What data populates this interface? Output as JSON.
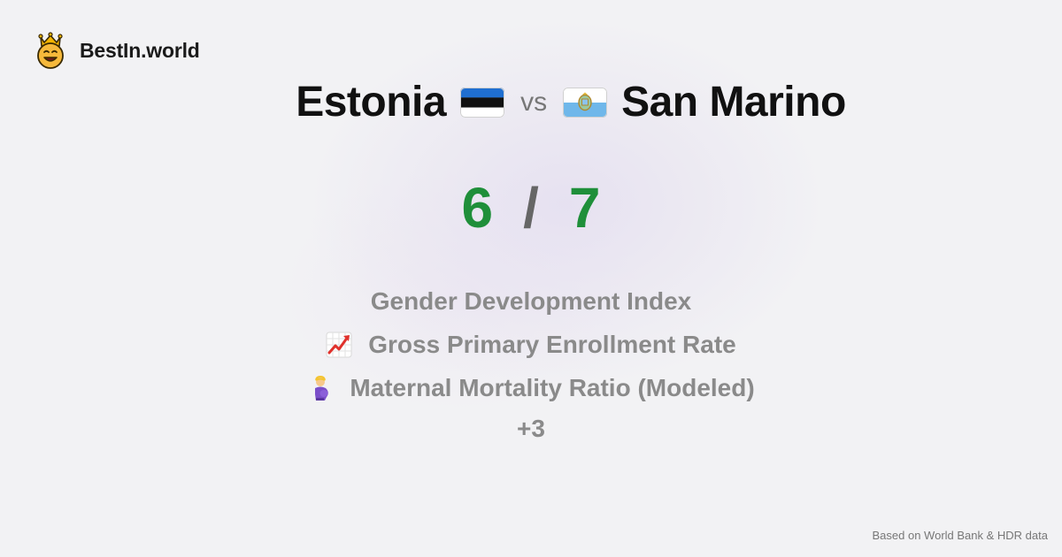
{
  "brand": {
    "name": "BestIn.world",
    "icon": "crown-smiley-icon"
  },
  "comparison": {
    "left_country": "Estonia",
    "left_flag": "estonia-flag-icon",
    "vs_label": "vs",
    "right_country": "San Marino",
    "right_flag": "san-marino-flag-icon"
  },
  "score": {
    "left": "6",
    "separator": "/",
    "right": "7",
    "color": "#1f8f3a"
  },
  "metrics": [
    {
      "label": "Gender Development Index",
      "icon": ""
    },
    {
      "label": "Gross Primary Enrollment Rate",
      "icon": "chart-increasing-icon"
    },
    {
      "label": "Maternal Mortality Ratio (Modeled)",
      "icon": "pregnant-woman-icon"
    }
  ],
  "more_count": "+3",
  "footer": {
    "source": "Based on World Bank & HDR data"
  }
}
